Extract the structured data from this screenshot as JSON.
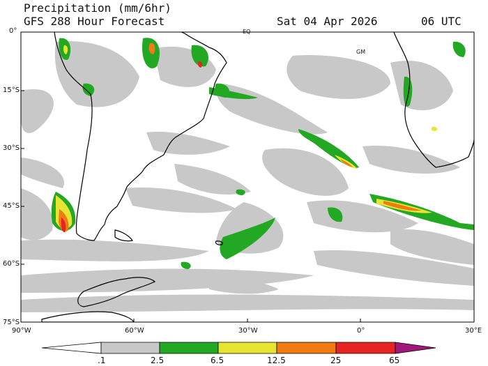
{
  "header": {
    "title": "Precipitation (mm/6hr)",
    "model": "GFS 288 Hour Forecast",
    "date": "Sat 04 Apr 2026",
    "time": "06 UTC"
  },
  "map": {
    "lat_labels": [
      "0°",
      "15°S",
      "30°S",
      "45°S",
      "60°S",
      "75°S"
    ],
    "lon_labels": [
      "90°W",
      "60°W",
      "30°W",
      "0°",
      "30°E"
    ],
    "place_labels": {
      "equator": "EQ",
      "greenwich": "GM"
    }
  },
  "colorbar": {
    "ticks": [
      ".1",
      "2.5",
      "6.5",
      "12.5",
      "25",
      "65"
    ],
    "colors": [
      "#ffffff",
      "#c8c8c8",
      "#22a822",
      "#e6e632",
      "#f07a14",
      "#e82323",
      "#a0187a"
    ]
  }
}
